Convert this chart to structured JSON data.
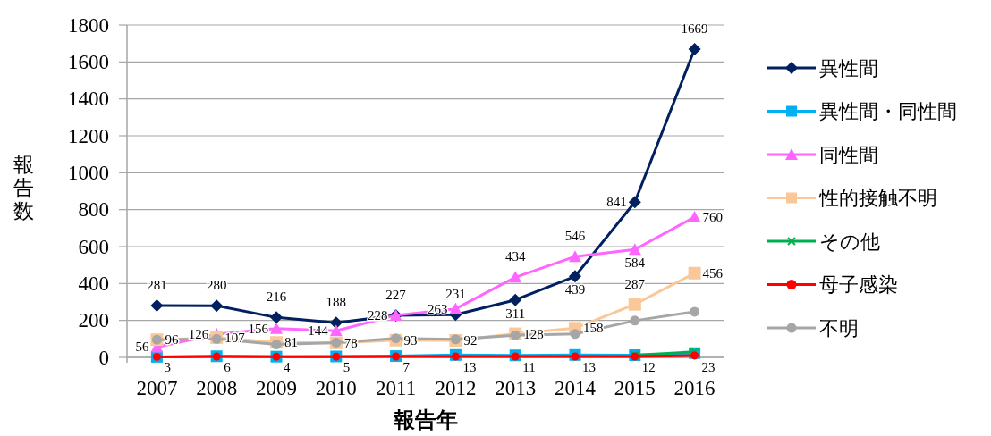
{
  "chart_data": {
    "type": "line",
    "xlabel": "報告年",
    "ylabel": "報告数",
    "categories": [
      "2007",
      "2008",
      "2009",
      "2010",
      "2011",
      "2012",
      "2013",
      "2014",
      "2015",
      "2016"
    ],
    "ylim": [
      0,
      1800
    ],
    "yticks": [
      0,
      200,
      400,
      600,
      800,
      1000,
      1200,
      1400,
      1600,
      1800
    ],
    "grid": "y",
    "legend": "right",
    "series": [
      {
        "name": "異性間",
        "color": "#002060",
        "marker": "diamond",
        "data_labels": true,
        "values": [
          281,
          280,
          216,
          188,
          227,
          231,
          311,
          439,
          841,
          1669
        ]
      },
      {
        "name": "異性間・同性間",
        "color": "#00b0f0",
        "marker": "square",
        "data_labels": true,
        "values": [
          3,
          6,
          4,
          5,
          7,
          13,
          11,
          13,
          12,
          23
        ]
      },
      {
        "name": "同性間",
        "color": "#ff66ff",
        "marker": "triangle",
        "data_labels": true,
        "values": [
          56,
          126,
          156,
          144,
          228,
          263,
          434,
          546,
          584,
          760
        ]
      },
      {
        "name": "性的接触不明",
        "color": "#fac898",
        "marker": "square",
        "data_labels": true,
        "values": [
          96,
          107,
          81,
          78,
          93,
          92,
          128,
          158,
          287,
          456
        ]
      },
      {
        "name": "その他",
        "color": "#00b050",
        "marker": "cross",
        "values": [
          null,
          null,
          null,
          null,
          null,
          null,
          null,
          null,
          12,
          30
        ]
      },
      {
        "name": "母子感染",
        "color": "#ff0000",
        "marker": "circle",
        "values": [
          3,
          5,
          4,
          4,
          5,
          5,
          5,
          5,
          5,
          10
        ]
      },
      {
        "name": "不明",
        "color": "#a6a6a6",
        "marker": "circle",
        "values": [
          96,
          100,
          70,
          80,
          103,
          98,
          120,
          127,
          199,
          247
        ]
      }
    ]
  }
}
